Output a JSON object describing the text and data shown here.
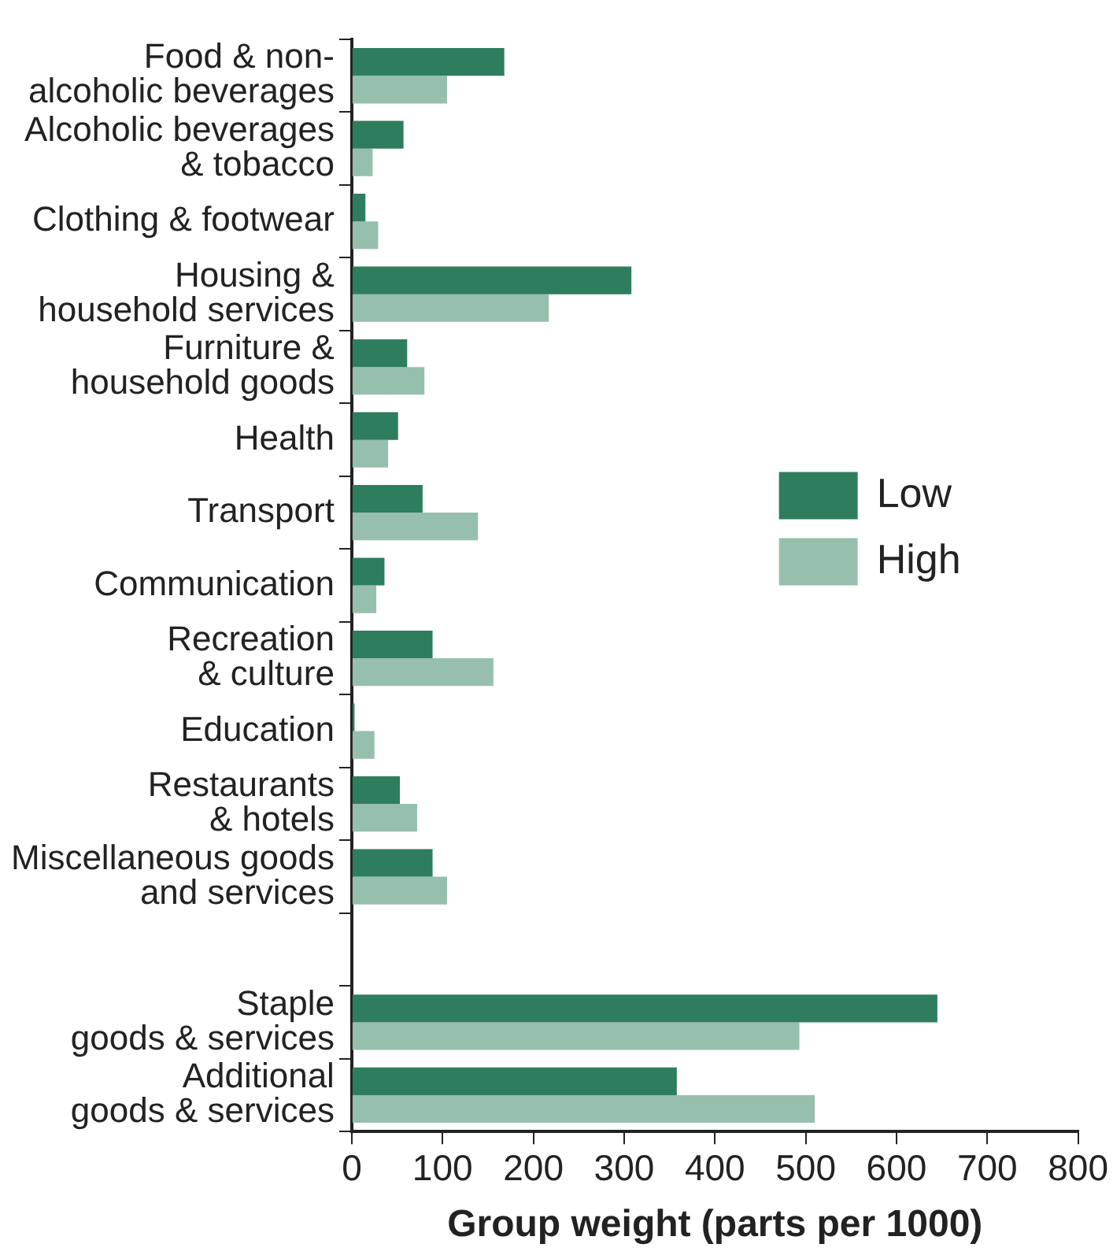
{
  "chart_data": {
    "type": "bar",
    "orientation": "horizontal",
    "xlabel": "Group weight (parts per 1000)",
    "categories": [
      "Food & non-\nalcoholic beverages",
      "Alcoholic beverages\n& tobacco",
      "Clothing & footwear",
      "Housing &\nhousehold services",
      "Furniture &\nhousehold goods",
      "Health",
      "Transport",
      "Communication",
      "Recreation\n& culture",
      "Education",
      "Restaurants\n& hotels",
      "Miscellaneous goods\nand services",
      null,
      "Staple\ngoods & services",
      "Additional\ngoods & services"
    ],
    "series": [
      {
        "name": "Low",
        "color": "#2e7d5e",
        "values": [
          168,
          57,
          15,
          308,
          61,
          51,
          78,
          36,
          89,
          3,
          53,
          89,
          null,
          645,
          358
        ]
      },
      {
        "name": "High",
        "color": "#97bfad",
        "values": [
          105,
          23,
          29,
          217,
          80,
          40,
          139,
          27,
          156,
          25,
          72,
          105,
          null,
          493,
          510
        ]
      }
    ],
    "xlim": [
      0,
      800
    ],
    "xticks": [
      0,
      100,
      200,
      300,
      400,
      500,
      600,
      700,
      800
    ],
    "grid": false,
    "legend": "right"
  }
}
